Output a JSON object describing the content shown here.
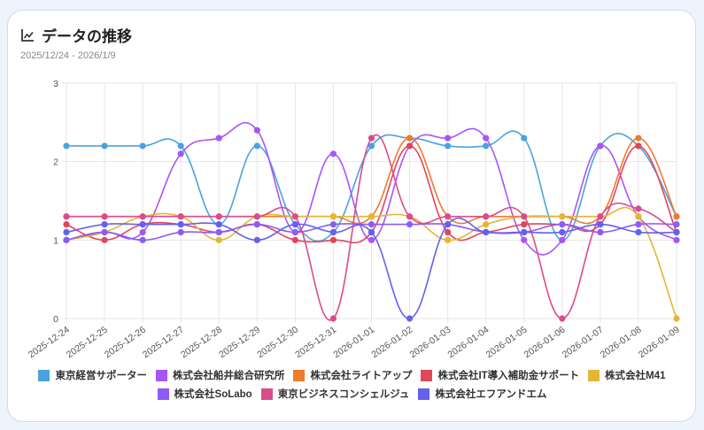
{
  "header": {
    "title": "データの推移",
    "icon": "line-chart-icon",
    "date_range": "2025/12/24 - 2026/1/9"
  },
  "chart_data": {
    "type": "line",
    "categories": [
      "2025-12-24",
      "2025-12-25",
      "2025-12-26",
      "2025-12-27",
      "2025-12-28",
      "2025-12-29",
      "2025-12-30",
      "2025-12-31",
      "2026-01-01",
      "2026-01-02",
      "2026-01-03",
      "2026-01-04",
      "2026-01-05",
      "2026-01-06",
      "2026-01-07",
      "2026-01-08",
      "2026-01-09"
    ],
    "ylim": [
      0,
      3
    ],
    "yticks": [
      "0",
      "1",
      "2",
      "3"
    ],
    "grid": true,
    "legend": "bottom",
    "series": [
      {
        "name": "東京経営サポーター",
        "color": "#4aa3e0",
        "values": [
          2.2,
          2.2,
          2.2,
          2.2,
          1.2,
          2.2,
          1.2,
          1.1,
          2.2,
          2.3,
          2.2,
          2.2,
          2.3,
          1.0,
          2.2,
          2.2,
          1.3
        ]
      },
      {
        "name": "株式会社船井総合研究所",
        "color": "#a855f7",
        "values": [
          1.0,
          1.1,
          1.1,
          2.1,
          2.3,
          2.4,
          1.1,
          2.1,
          1.0,
          2.2,
          2.3,
          2.3,
          1.0,
          1.0,
          2.2,
          1.3,
          1.0
        ]
      },
      {
        "name": "株式会社ライトアップ",
        "color": "#ef7a30",
        "values": [
          1.3,
          1.3,
          1.3,
          1.3,
          1.3,
          1.3,
          1.3,
          1.3,
          1.3,
          2.3,
          1.3,
          1.3,
          1.3,
          1.3,
          1.3,
          2.3,
          1.3
        ]
      },
      {
        "name": "株式会社IT導入補助金サポート",
        "color": "#e2465a",
        "values": [
          1.2,
          1.0,
          1.2,
          1.2,
          1.1,
          1.2,
          1.0,
          1.0,
          1.1,
          2.2,
          1.1,
          1.1,
          1.2,
          1.2,
          1.2,
          2.2,
          1.1
        ]
      },
      {
        "name": "株式会社M41",
        "color": "#e5b535",
        "values": [
          1.0,
          1.1,
          1.3,
          1.3,
          1.0,
          1.3,
          1.3,
          1.3,
          1.3,
          1.3,
          1.0,
          1.2,
          1.3,
          1.3,
          1.3,
          1.3,
          0
        ]
      },
      {
        "name": "株式会社SoLabo",
        "color": "#8b5cf6",
        "values": [
          1.0,
          1.1,
          1.0,
          1.1,
          1.1,
          1.2,
          1.1,
          1.2,
          1.2,
          1.2,
          1.2,
          1.1,
          1.1,
          1.2,
          1.1,
          1.2,
          1.2
        ]
      },
      {
        "name": "東京ビジネスコンシェルジュ",
        "color": "#db4b8e",
        "values": [
          1.3,
          1.3,
          1.3,
          1.3,
          1.3,
          1.3,
          1.3,
          0,
          2.3,
          1.3,
          1.3,
          1.3,
          1.3,
          0,
          1.3,
          1.4,
          1.1
        ]
      },
      {
        "name": "株式会社エフアンドエム",
        "color": "#6461ee",
        "values": [
          1.1,
          1.2,
          1.2,
          1.2,
          1.2,
          1.0,
          1.2,
          1.1,
          1.1,
          0,
          1.2,
          1.1,
          1.1,
          1.1,
          1.2,
          1.1,
          1.1
        ]
      }
    ]
  }
}
